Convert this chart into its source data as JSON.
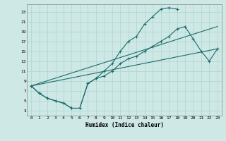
{
  "title": "",
  "xlabel": "Humidex (Indice chaleur)",
  "bg_color": "#cde8e5",
  "line_color": "#1e6b6b",
  "grid_color": "#aed4d0",
  "xlim": [
    -0.5,
    23.5
  ],
  "ylim": [
    2,
    24.5
  ],
  "xticks": [
    0,
    1,
    2,
    3,
    4,
    5,
    6,
    7,
    8,
    9,
    10,
    11,
    12,
    13,
    14,
    15,
    16,
    17,
    18,
    19,
    20,
    21,
    22,
    23
  ],
  "yticks": [
    3,
    5,
    7,
    9,
    11,
    13,
    15,
    17,
    19,
    21,
    23
  ],
  "curve1_x": [
    0,
    1,
    2,
    3,
    4,
    5,
    6,
    7,
    8,
    9,
    10,
    11,
    12,
    13,
    14,
    15,
    16,
    17,
    18
  ],
  "curve1_y": [
    8,
    6.5,
    5.5,
    5.0,
    4.5,
    3.5,
    3.5,
    8.5,
    9.5,
    11,
    12.5,
    15,
    17,
    18,
    20.5,
    22,
    23.5,
    23.8,
    23.5
  ],
  "curve2_x": [
    0,
    1,
    2,
    3,
    4,
    5,
    6,
    7,
    8,
    9,
    10,
    11,
    12,
    13,
    14,
    15,
    16,
    17,
    18,
    19,
    20,
    21,
    22,
    23
  ],
  "curve2_y": [
    8,
    6.5,
    5.5,
    5.0,
    4.5,
    3.5,
    3.5,
    8.5,
    9.5,
    10,
    11,
    12.5,
    13.5,
    14,
    15,
    16,
    17,
    18,
    19.5,
    20,
    17.5,
    15,
    13,
    15.5
  ],
  "curve3_x": [
    0,
    23
  ],
  "curve3_y": [
    8,
    20
  ],
  "curve4_x": [
    0,
    23
  ],
  "curve4_y": [
    8,
    15.5
  ]
}
